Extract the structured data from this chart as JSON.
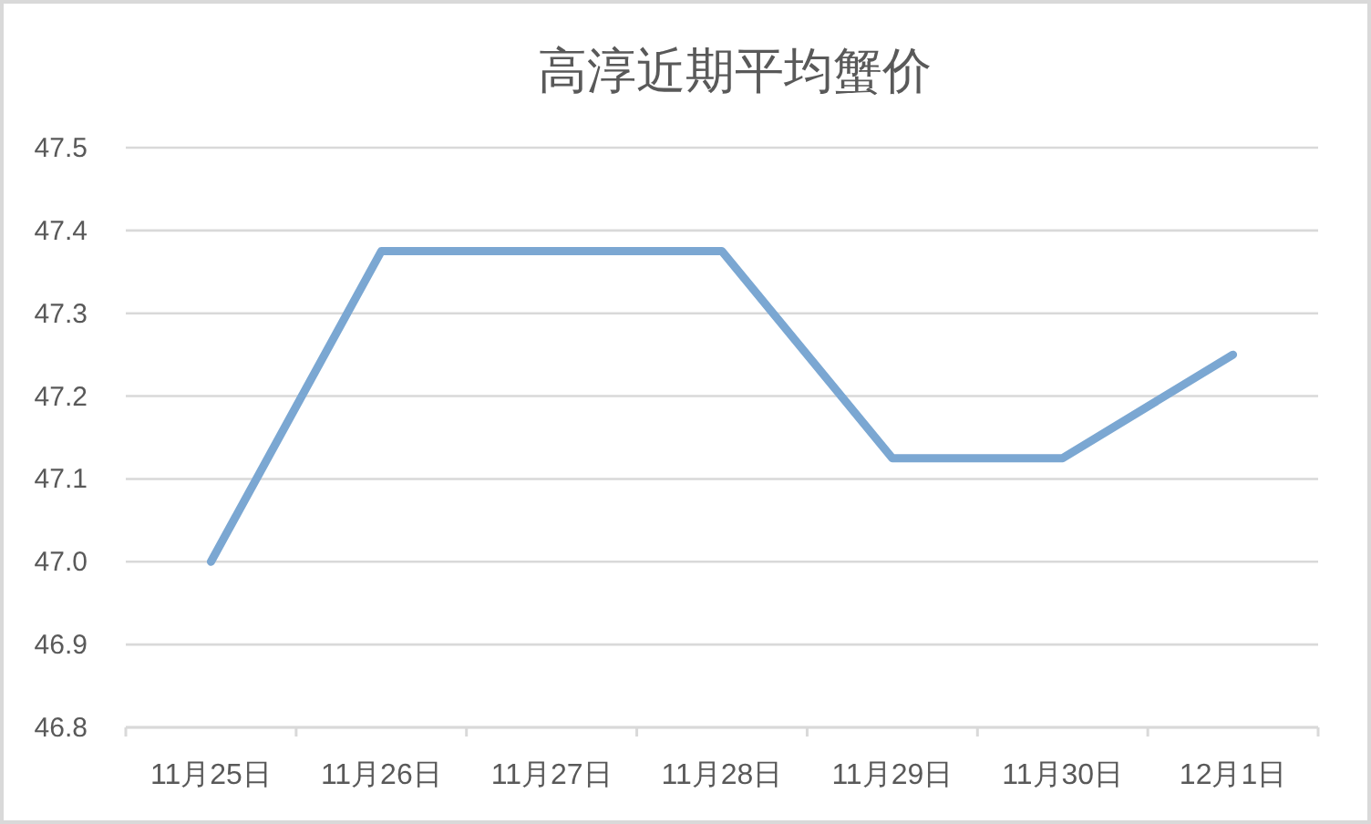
{
  "chart_data": {
    "type": "line",
    "title": "高淳近期平均蟹价",
    "categories": [
      "11月25日",
      "11月26日",
      "11月27日",
      "11月28日",
      "11月29日",
      "11月30日",
      "12月1日"
    ],
    "series": [
      {
        "color": "#7ba7d2",
        "values": [
          47.0,
          47.375,
          47.375,
          47.375,
          47.125,
          47.125,
          47.25
        ]
      }
    ],
    "ylim": [
      46.8,
      47.5
    ],
    "yticks": [
      46.8,
      46.9,
      {
        "value": 47,
        "label": "47.0"
      },
      47.1,
      47.2,
      47.3,
      47.4,
      47.5
    ],
    "grid": "y"
  }
}
